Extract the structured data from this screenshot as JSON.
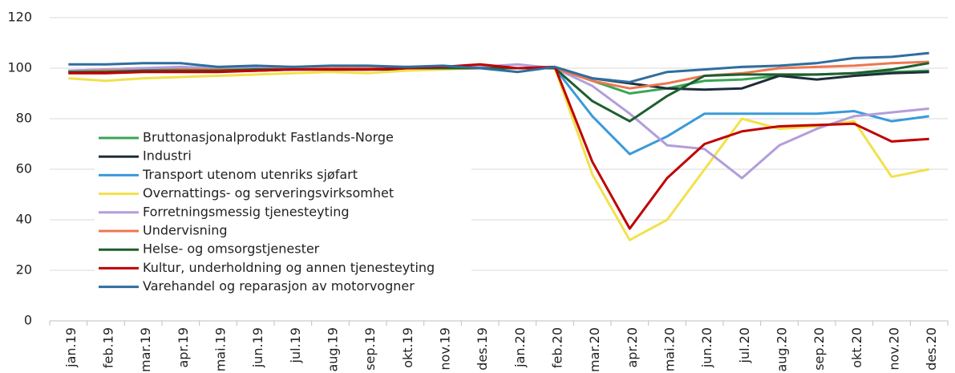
{
  "chart_data": {
    "type": "line",
    "categories": [
      "jan.19",
      "feb.19",
      "mar.19",
      "apr.19",
      "mai.19",
      "jun.19",
      "jul.19",
      "aug.19",
      "sep.19",
      "okt.19",
      "nov.19",
      "des.19",
      "jan.20",
      "feb.20",
      "mar.20",
      "apr.20",
      "mai.20",
      "jun.20",
      "jul.20",
      "aug.20",
      "sep.20",
      "okt.20",
      "nov.20",
      "des.20"
    ],
    "series": [
      {
        "name": "Bruttonasjonalprodukt Fastlands-Norge",
        "color": "#3aa655",
        "values": [
          99,
          99,
          99.5,
          99.5,
          99.5,
          99.5,
          100,
          99.5,
          99.5,
          99.5,
          100,
          100,
          100,
          100,
          95,
          90,
          92,
          95,
          95.5,
          97,
          97.5,
          98,
          98.5,
          99
        ]
      },
      {
        "name": "Industri",
        "color": "#1f2d3a",
        "values": [
          98.5,
          98.5,
          99,
          99,
          99,
          99,
          99.5,
          99.5,
          99.5,
          99.5,
          100,
          100,
          100,
          100,
          96,
          94,
          92,
          91.5,
          92,
          97,
          95.5,
          97,
          98,
          98.5
        ]
      },
      {
        "name": "Transport utenom utenriks sjøfart",
        "color": "#3a9ad9",
        "values": [
          99,
          99.5,
          100,
          100,
          100,
          100,
          100,
          100,
          100,
          100,
          100,
          100,
          100,
          100,
          81,
          66,
          73,
          82,
          82,
          82,
          82,
          83,
          79,
          81
        ]
      },
      {
        "name": "Overnattings- og serveringsvirksomhet",
        "color": "#f2e14c",
        "values": [
          96,
          95,
          96,
          96.5,
          97,
          97.5,
          98,
          98.5,
          98,
          99,
          99.5,
          100,
          100,
          100,
          58,
          32,
          40,
          60,
          80,
          76,
          77,
          79,
          57,
          60
        ]
      },
      {
        "name": "Forretningsmessig tjenesteyting",
        "color": "#b39ddb",
        "values": [
          99,
          99.5,
          100,
          100.5,
          100,
          100,
          100.5,
          100,
          100.5,
          100.5,
          100.5,
          100.5,
          101.5,
          100,
          93,
          82,
          69.5,
          68,
          56.5,
          69.5,
          76,
          81,
          82.5,
          84
        ]
      },
      {
        "name": "Undervisning",
        "color": "#ee7751",
        "values": [
          98.5,
          99,
          99,
          99.5,
          99.5,
          99.5,
          100,
          100,
          100,
          100,
          100,
          100,
          100,
          100,
          95,
          92,
          94,
          97,
          98,
          100,
          100.5,
          101,
          102,
          102.5
        ]
      },
      {
        "name": "Helse- og omsorgstjenester",
        "color": "#1e5e2f",
        "values": [
          98.5,
          98.5,
          99,
          99,
          99,
          99.5,
          99.5,
          99.5,
          99.5,
          100,
          100,
          100,
          100,
          100,
          87,
          79,
          89,
          97,
          97.5,
          97.5,
          97.5,
          98,
          99.5,
          102
        ]
      },
      {
        "name": "Kultur, underholdning og annen tjenesteyting",
        "color": "#c00000",
        "values": [
          98,
          98,
          98.5,
          98.5,
          98.5,
          99,
          99.5,
          99.5,
          99.5,
          100,
          100.5,
          101.5,
          100,
          100.5,
          63,
          36.5,
          56.5,
          70,
          75,
          77,
          77.5,
          78,
          71,
          72
        ]
      },
      {
        "name": "Varehandel og reparasjon av motorvogner",
        "color": "#2f6e9e",
        "values": [
          101.5,
          101.5,
          102,
          102,
          100.5,
          101,
          100.5,
          101,
          101,
          100.5,
          101,
          100,
          98.5,
          100.5,
          96,
          94.5,
          98.5,
          99.5,
          100.5,
          101,
          102,
          104,
          104.5,
          106
        ]
      }
    ],
    "ylim": [
      0,
      120
    ],
    "yticks": [
      0,
      20,
      40,
      60,
      80,
      100,
      120
    ],
    "grid": true,
    "legend": "left"
  }
}
